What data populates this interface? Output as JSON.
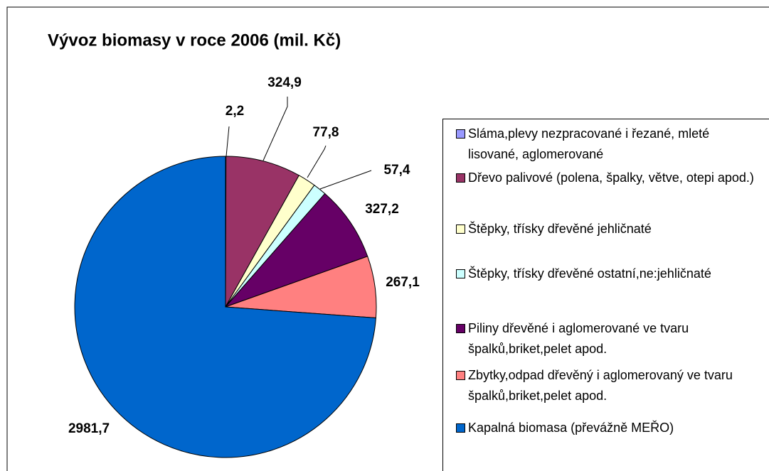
{
  "chart_data": {
    "type": "pie",
    "title": "Vývoz biomasy v roce 2006 (mil. Kč)",
    "categories": [
      "Sláma,plevy nezpracované i řezané, mleté lisované, aglomerované",
      "Dřevo palivové (polena, špalky, větve, otepi apod.)",
      "Štěpky, třísky dřevěné jehličnaté",
      "Štěpky, třísky dřevěné ostatní,ne:jehličnaté",
      "Piliny dřevěné i aglomerované ve tvaru špalků,briket,pelet apod.",
      "Zbytky,odpad dřevěný i aglomerovaný ve tvaru špalků,briket,pelet apod.",
      "Kapalná biomasa (převážně MEŘO)"
    ],
    "values": [
      2.2,
      324.9,
      77.8,
      57.4,
      327.2,
      267.1,
      2981.7
    ],
    "value_labels": [
      "2,2",
      "324,9",
      "77,8",
      "57,4",
      "327,2",
      "267,1",
      "2981,7"
    ],
    "colors": [
      "#9999ff",
      "#993366",
      "#ffffcc",
      "#ccffff",
      "#660066",
      "#ff8080",
      "#0066cc"
    ],
    "legend": "right"
  }
}
